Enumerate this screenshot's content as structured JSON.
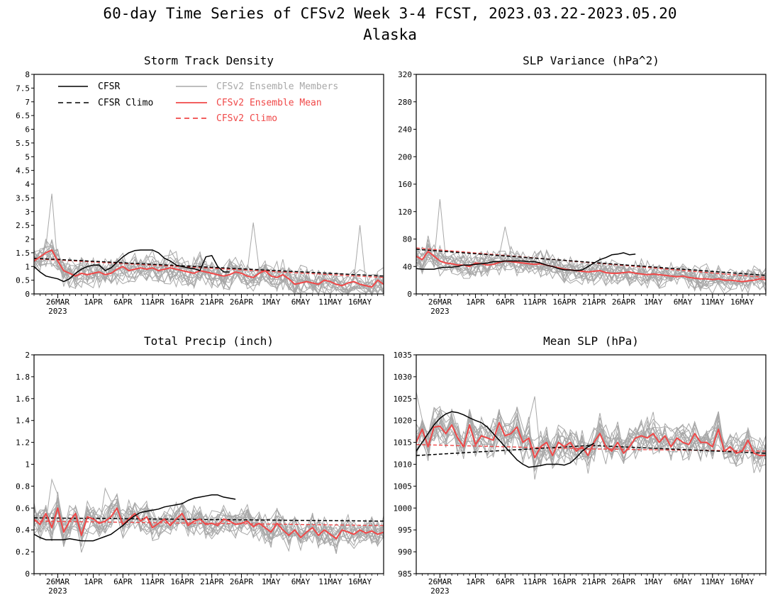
{
  "figure": {
    "title_line1": "60-day Time Series of CFSv2 Week 3-4 FCST, 2023.03.22-2023.05.20",
    "title_line2": "Alaska"
  },
  "legend": {
    "cfsr": "CFSR",
    "cfsr_climo": "CFSR Climo",
    "ens_members": "CFSv2 Ensemble Members",
    "ens_mean": "CFSv2 Ensemble Mean",
    "cfsv2_climo": "CFSv2 Climo"
  },
  "colors": {
    "cfsr": "#000000",
    "ens_members": "#a8a8a8",
    "ens_mean": "#f04848",
    "cfsv2_climo": "#f04848",
    "axes": "#000000"
  },
  "chart_data": [
    {
      "type": "line",
      "title": "Storm Track Density",
      "x_start": "2023-03-22",
      "x_end": "2023-05-20",
      "xtick_labels": [
        "26MAR",
        "1APR",
        "6APR",
        "11APR",
        "16APR",
        "21APR",
        "26APR",
        "1MAY",
        "6MAY",
        "11MAY",
        "16MAY"
      ],
      "xtick_dates": [
        "2023-03-26",
        "2023-04-01",
        "2023-04-06",
        "2023-04-11",
        "2023-04-16",
        "2023-04-21",
        "2023-04-26",
        "2023-05-01",
        "2023-05-06",
        "2023-05-11",
        "2023-05-16"
      ],
      "year_label": "2023",
      "ylim": [
        0,
        8
      ],
      "yticks": [
        "0",
        "0.5",
        "1",
        "1.5",
        "2",
        "2.5",
        "3",
        "3.5",
        "4",
        "4.5",
        "5",
        "5.5",
        "6",
        "6.5",
        "7",
        "7.5",
        "8"
      ],
      "legend_shown": true,
      "legend_position": "top",
      "series": [
        {
          "name": "CFSR",
          "style": "solid-black",
          "start": "2023-03-22",
          "values": [
            1.0,
            0.8,
            0.65,
            0.6,
            0.55,
            0.45,
            0.55,
            0.75,
            0.9,
            1.0,
            1.05,
            1.05,
            0.85,
            0.95,
            1.15,
            1.35,
            1.5,
            1.58,
            1.6,
            1.6,
            1.6,
            1.5,
            1.3,
            1.2,
            1.05,
            1.0,
            0.95,
            0.92,
            0.85,
            1.35,
            1.4,
            1.0,
            0.8,
            0.8
          ]
        },
        {
          "name": "CFSR Climo",
          "style": "dashed-black",
          "start": "2023-03-22",
          "values": [
            1.3,
            0.65
          ]
        },
        {
          "name": "CFSv2 Climo",
          "style": "dashed-red",
          "start": "2023-03-22",
          "values": [
            1.28,
            0.6
          ]
        },
        {
          "name": "CFSv2 Ensemble Mean",
          "style": "solid-red",
          "start": "2023-03-22",
          "values": [
            1.2,
            1.35,
            1.5,
            1.6,
            1.2,
            0.85,
            0.75,
            0.65,
            0.75,
            0.7,
            0.75,
            0.8,
            0.7,
            0.75,
            0.9,
            1.0,
            0.85,
            0.9,
            0.95,
            0.9,
            0.95,
            0.85,
            0.9,
            0.95,
            0.9,
            0.85,
            0.8,
            0.75,
            0.85,
            0.8,
            0.75,
            0.7,
            0.65,
            0.7,
            0.8,
            0.75,
            0.65,
            0.6,
            0.75,
            0.85,
            0.65,
            0.6,
            0.7,
            0.55,
            0.35,
            0.4,
            0.45,
            0.4,
            0.35,
            0.5,
            0.45,
            0.35,
            0.3,
            0.4,
            0.45,
            0.35,
            0.3,
            0.25,
            0.5,
            0.35
          ]
        }
      ],
      "members": {
        "count": 16,
        "center": "CFSv2 Ensemble Mean",
        "spread": 0.45,
        "peaks": [
          [
            "2023-03-25",
            3.65
          ],
          [
            "2023-04-28",
            2.6
          ],
          [
            "2023-05-16",
            2.5
          ]
        ]
      }
    },
    {
      "type": "line",
      "title": "SLP Variance (hPa^2)",
      "x_start": "2023-03-22",
      "x_end": "2023-05-20",
      "xtick_labels": [
        "26MAR",
        "1APR",
        "6APR",
        "11APR",
        "16APR",
        "21APR",
        "26APR",
        "1MAY",
        "6MAY",
        "11MAY",
        "16MAY"
      ],
      "xtick_dates": [
        "2023-03-26",
        "2023-04-01",
        "2023-04-06",
        "2023-04-11",
        "2023-04-16",
        "2023-04-21",
        "2023-04-26",
        "2023-05-01",
        "2023-05-06",
        "2023-05-11",
        "2023-05-16"
      ],
      "year_label": "2023",
      "ylim": [
        0,
        320
      ],
      "yticks": [
        "0",
        "40",
        "80",
        "120",
        "160",
        "200",
        "240",
        "280",
        "320"
      ],
      "legend_shown": false,
      "series": [
        {
          "name": "CFSR",
          "style": "solid-black",
          "start": "2023-03-22",
          "values": [
            37,
            36,
            36,
            36,
            38,
            39,
            39,
            40,
            42,
            42,
            43,
            44,
            45,
            47,
            47,
            48,
            48,
            48,
            48,
            47,
            47,
            45,
            42,
            40,
            37,
            35,
            35,
            34,
            35,
            40,
            45,
            50,
            53,
            57,
            58,
            60,
            57,
            58
          ]
        },
        {
          "name": "CFSR Climo",
          "style": "dashed-black",
          "start": "2023-03-22",
          "values": [
            65,
            27
          ]
        },
        {
          "name": "CFSv2 Climo",
          "style": "dashed-red",
          "start": "2023-03-22",
          "values": [
            67,
            24
          ]
        },
        {
          "name": "CFSv2 Ensemble Mean",
          "style": "solid-red",
          "start": "2023-03-22",
          "values": [
            55,
            50,
            62,
            55,
            48,
            45,
            44,
            42,
            42,
            40,
            45,
            44,
            42,
            43,
            46,
            48,
            47,
            46,
            45,
            44,
            43,
            44,
            42,
            40,
            38,
            36,
            35,
            34,
            33,
            32,
            33,
            34,
            31,
            30,
            30,
            31,
            32,
            30,
            29,
            28,
            29,
            28,
            27,
            26,
            25,
            26,
            24,
            23,
            22,
            22,
            21,
            22,
            20,
            20,
            19,
            18,
            19,
            20,
            22,
            21
          ]
        }
      ],
      "members": {
        "count": 16,
        "center": "CFSv2 Ensemble Mean",
        "spread": 16,
        "peaks": [
          [
            "2023-03-26",
            138
          ],
          [
            "2023-04-06",
            98
          ]
        ]
      }
    },
    {
      "type": "line",
      "title": "Total Precip (inch)",
      "x_start": "2023-03-22",
      "x_end": "2023-05-20",
      "xtick_labels": [
        "26MAR",
        "1APR",
        "6APR",
        "11APR",
        "16APR",
        "21APR",
        "26APR",
        "1MAY",
        "6MAY",
        "11MAY",
        "16MAY"
      ],
      "xtick_dates": [
        "2023-03-26",
        "2023-04-01",
        "2023-04-06",
        "2023-04-11",
        "2023-04-16",
        "2023-04-21",
        "2023-04-26",
        "2023-05-01",
        "2023-05-06",
        "2023-05-11",
        "2023-05-16"
      ],
      "year_label": "2023",
      "ylim": [
        0,
        2
      ],
      "yticks": [
        "0",
        "0.2",
        "0.4",
        "0.6",
        "0.8",
        "1",
        "1.2",
        "1.4",
        "1.6",
        "1.8",
        "2"
      ],
      "legend_shown": false,
      "series": [
        {
          "name": "CFSR",
          "style": "solid-black",
          "start": "2023-03-22",
          "values": [
            0.36,
            0.33,
            0.31,
            0.31,
            0.31,
            0.31,
            0.32,
            0.31,
            0.3,
            0.3,
            0.3,
            0.32,
            0.34,
            0.36,
            0.4,
            0.44,
            0.49,
            0.53,
            0.56,
            0.57,
            0.58,
            0.59,
            0.61,
            0.62,
            0.63,
            0.64,
            0.67,
            0.69,
            0.7,
            0.71,
            0.72,
            0.72,
            0.7,
            0.69,
            0.68
          ]
        },
        {
          "name": "CFSR Climo",
          "style": "dashed-black",
          "start": "2023-03-22",
          "values": [
            0.51,
            0.48
          ]
        },
        {
          "name": "CFSv2 Climo",
          "style": "dashed-red",
          "start": "2023-03-22",
          "values": [
            0.48,
            0.44
          ]
        },
        {
          "name": "CFSv2 Ensemble Mean",
          "style": "solid-red",
          "start": "2023-03-22",
          "values": [
            0.5,
            0.45,
            0.55,
            0.42,
            0.6,
            0.38,
            0.48,
            0.55,
            0.35,
            0.52,
            0.5,
            0.46,
            0.48,
            0.52,
            0.6,
            0.45,
            0.5,
            0.55,
            0.48,
            0.52,
            0.42,
            0.46,
            0.5,
            0.44,
            0.5,
            0.55,
            0.44,
            0.48,
            0.5,
            0.45,
            0.46,
            0.44,
            0.5,
            0.48,
            0.45,
            0.46,
            0.48,
            0.43,
            0.46,
            0.42,
            0.38,
            0.46,
            0.4,
            0.35,
            0.4,
            0.33,
            0.38,
            0.42,
            0.35,
            0.4,
            0.36,
            0.32,
            0.4,
            0.38,
            0.36,
            0.4,
            0.37,
            0.39,
            0.36,
            0.38
          ]
        }
      ],
      "members": {
        "count": 16,
        "center": "CFSv2 Ensemble Mean",
        "spread": 0.12,
        "peaks": [
          [
            "2023-03-25",
            0.86
          ],
          [
            "2023-04-03",
            0.78
          ]
        ]
      }
    },
    {
      "type": "line",
      "title": "Mean SLP (hPa)",
      "x_start": "2023-03-22",
      "x_end": "2023-05-20",
      "xtick_labels": [
        "26MAR",
        "1APR",
        "6APR",
        "11APR",
        "16APR",
        "21APR",
        "26APR",
        "1MAY",
        "6MAY",
        "11MAY",
        "16MAY"
      ],
      "xtick_dates": [
        "2023-03-26",
        "2023-04-01",
        "2023-04-06",
        "2023-04-11",
        "2023-04-16",
        "2023-04-21",
        "2023-04-26",
        "2023-05-01",
        "2023-05-06",
        "2023-05-11",
        "2023-05-16"
      ],
      "year_label": "2023",
      "ylim": [
        985,
        1035
      ],
      "yticks": [
        "985",
        "990",
        "995",
        "1000",
        "1005",
        "1010",
        "1015",
        "1020",
        "1025",
        "1030",
        "1035"
      ],
      "legend_shown": false,
      "series": [
        {
          "name": "CFSR",
          "style": "solid-black",
          "start": "2023-03-22",
          "values": [
            1013,
            1015,
            1017,
            1019,
            1020.5,
            1021.5,
            1022,
            1021.8,
            1021.3,
            1020.6,
            1020,
            1019.5,
            1018.5,
            1017,
            1015.5,
            1014,
            1012.5,
            1011,
            1010,
            1009.3,
            1009.5,
            1009.7,
            1010,
            1010,
            1010,
            1009.8,
            1010.3,
            1011.5,
            1013,
            1014,
            1014.8
          ]
        },
        {
          "name": "CFSR Climo",
          "style": "dashed-black",
          "start": "2023-03-22",
          "values": [
            1012,
            1014.3,
            1012.5
          ]
        },
        {
          "name": "CFSv2 Climo",
          "style": "dashed-red",
          "start": "2023-03-22",
          "values": [
            1014.5,
            1013.5,
            1013
          ]
        },
        {
          "name": "CFSv2 Ensemble Mean",
          "style": "solid-red",
          "start": "2023-03-22",
          "values": [
            1015,
            1018,
            1014,
            1018.5,
            1018.7,
            1017,
            1019,
            1016,
            1014,
            1019,
            1014.5,
            1016.5,
            1016,
            1015.5,
            1019.5,
            1016.5,
            1017,
            1018.5,
            1015,
            1016,
            1011.5,
            1014,
            1015,
            1012,
            1015,
            1014,
            1015,
            1013,
            1014,
            1012,
            1015,
            1017,
            1014,
            1013,
            1015,
            1012.5,
            1014,
            1016,
            1016.5,
            1016,
            1017,
            1015,
            1016.5,
            1014,
            1016,
            1015,
            1014.5,
            1017,
            1015,
            1015,
            1014,
            1018,
            1013,
            1014,
            1012.5,
            1013,
            1015.5,
            1012.5,
            1012,
            1012
          ]
        }
      ],
      "members": {
        "count": 16,
        "center": "CFSv2 Ensemble Mean",
        "spread": 3.6,
        "peaks": [
          [
            "2023-03-22",
            1026.5
          ],
          [
            "2023-04-11",
            1025.5
          ]
        ]
      }
    }
  ]
}
